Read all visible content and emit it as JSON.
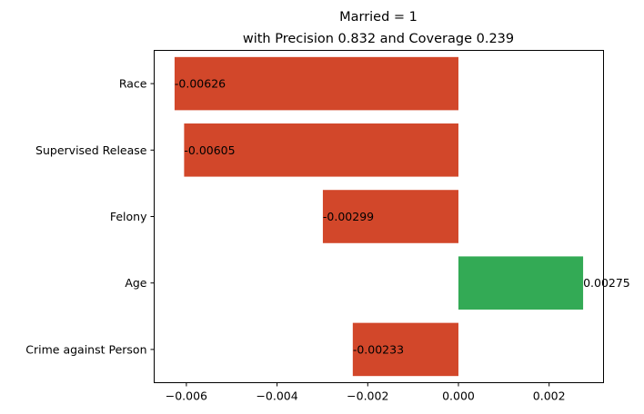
{
  "chart_data": {
    "type": "bar",
    "orientation": "horizontal",
    "title": "Married = 1",
    "subtitle": "with Precision 0.832 and Coverage 0.239",
    "categories": [
      "Race",
      "Supervised Release",
      "Felony",
      "Age",
      "Crime against Person"
    ],
    "values": [
      -0.00626,
      -0.00605,
      -0.00299,
      0.00275,
      -0.00233
    ],
    "value_labels": [
      "-0.00626",
      "-0.00605",
      "-0.00299",
      "0.00275",
      "-0.00233"
    ],
    "xlim": [
      -0.00671,
      0.0032
    ],
    "xticks": [
      -0.006,
      -0.004,
      -0.002,
      0.0,
      0.002
    ],
    "xtick_labels": [
      "−0.006",
      "−0.004",
      "−0.002",
      "0.000",
      "0.002"
    ],
    "xlabel": "",
    "ylabel": "",
    "grid": false,
    "colors": {
      "negative": "#d2472a",
      "positive": "#33aa55"
    }
  }
}
